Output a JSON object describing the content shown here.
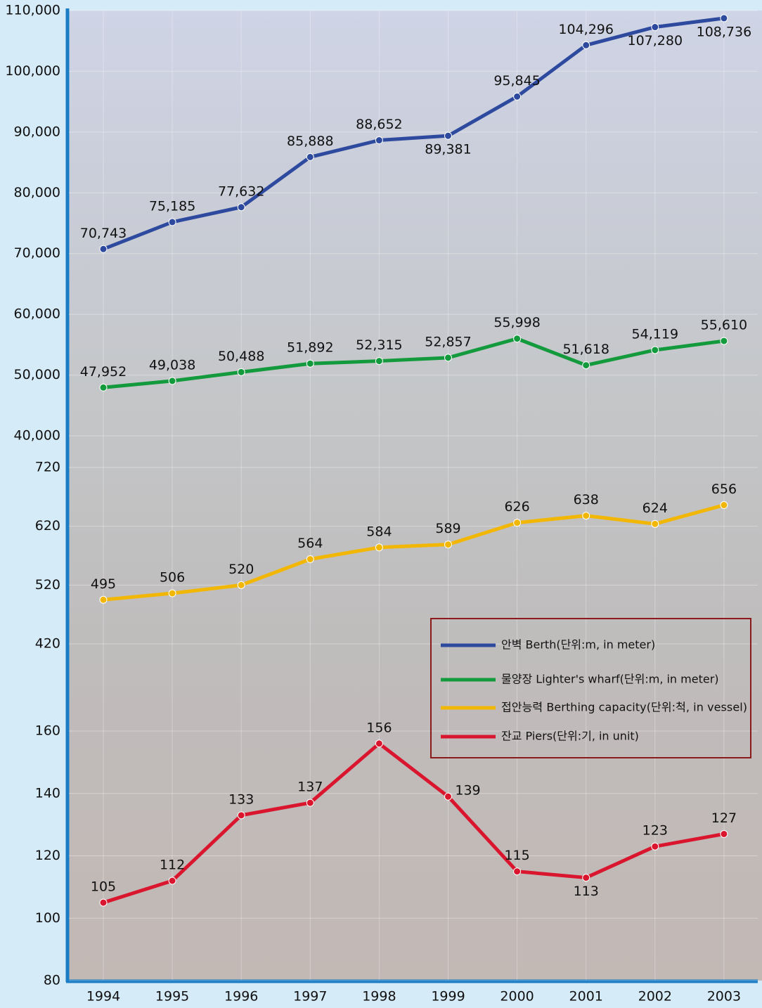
{
  "chart_data": {
    "type": "line",
    "categories": [
      "1994",
      "1995",
      "1996",
      "1997",
      "1998",
      "1999",
      "2000",
      "2001",
      "2002",
      "2003"
    ],
    "y_axes": [
      {
        "ylim": [
          40000,
          110000
        ],
        "yticks": [
          {
            "value": 40000,
            "label": "40,000"
          },
          {
            "value": 50000,
            "label": "50,000"
          },
          {
            "value": 60000,
            "label": "60,000"
          },
          {
            "value": 70000,
            "label": "70,000"
          },
          {
            "value": 80000,
            "label": "80,000"
          },
          {
            "value": 90000,
            "label": "90,000"
          },
          {
            "value": 100000,
            "label": "100,000"
          },
          {
            "value": 110000,
            "label": "110,000"
          }
        ]
      },
      {
        "ylim": [
          420,
          720
        ],
        "yticks": [
          420,
          520,
          620,
          720
        ]
      },
      {
        "ylim": [
          80,
          160
        ],
        "yticks": [
          80,
          100,
          120,
          140,
          160
        ]
      }
    ],
    "series": [
      {
        "name": "안벽 Berth(단위:m, in meter)",
        "color": "#2e4a9e",
        "axis": 0,
        "values": [
          70743,
          75185,
          77632,
          85888,
          88652,
          89381,
          95845,
          104296,
          107280,
          108736
        ],
        "value_labels": [
          "70,743",
          "75,185",
          "77,632",
          "85,888",
          "88,652",
          "89,381",
          "95,845",
          "104,296",
          "107,280",
          "108,736"
        ]
      },
      {
        "name": "물양장 Lighter's wharf(단위:m, in meter)",
        "color": "#129a3c",
        "axis": 0,
        "values": [
          47952,
          49038,
          50488,
          51892,
          52315,
          52857,
          55998,
          51618,
          54119,
          55610
        ],
        "value_labels": [
          "47,952",
          "49,038",
          "50,488",
          "51,892",
          "52,315",
          "52,857",
          "55,998",
          "51,618",
          "54,119",
          "55,610"
        ]
      },
      {
        "name": "접안능력 Berthing capacity(단위:척, in vessel)",
        "color": "#f2b705",
        "axis": 1,
        "values": [
          495,
          506,
          520,
          564,
          584,
          589,
          626,
          638,
          624,
          656
        ]
      },
      {
        "name": "잔교 Piers(단위:기, in unit)",
        "color": "#d9162e",
        "axis": 2,
        "values": [
          105,
          112,
          133,
          137,
          156,
          139,
          115,
          113,
          123,
          127
        ]
      }
    ]
  }
}
